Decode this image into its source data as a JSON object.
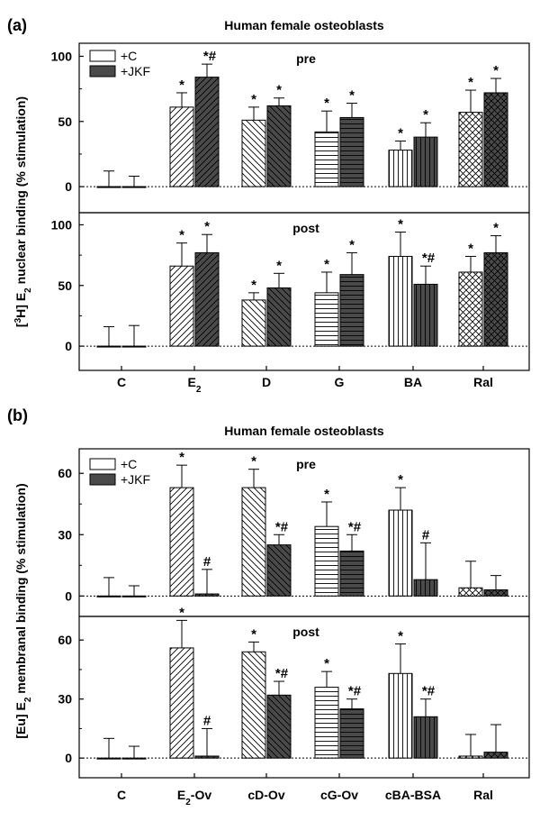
{
  "figure_title": "Human female osteoblasts, [3H] E2 nuclear binding and [Eu] E2 membranal binding",
  "colors": {
    "plus_c": "#ffffff",
    "plus_jkf": "#4a4a4a",
    "stroke": "#000000"
  },
  "chart_data": [
    {
      "type": "bar",
      "panel_label": "(a)",
      "title": "Human female osteoblasts",
      "ylabel_parts": [
        "[",
        "3",
        "H] E",
        "2",
        " nuclear binding (% stimulation)"
      ],
      "legend": [
        "+C",
        "+JKF"
      ],
      "categories": [
        "C",
        "E2",
        "D",
        "G",
        "BA",
        "Ral"
      ],
      "category_labels": [
        {
          "base": "C",
          "sub": ""
        },
        {
          "base": "E",
          "sub": "2"
        },
        {
          "base": "D",
          "sub": ""
        },
        {
          "base": "G",
          "sub": ""
        },
        {
          "base": "BA",
          "sub": ""
        },
        {
          "base": "Ral",
          "sub": ""
        }
      ],
      "hatches": [
        "none",
        "diag-up",
        "diag-down",
        "horizontal",
        "vertical",
        "crosshatch"
      ],
      "subpanels": [
        {
          "label": "pre",
          "ylim": [
            -20,
            110
          ],
          "yticks": [
            0,
            50,
            100
          ],
          "series": [
            {
              "name": "+C",
              "values": [
                0,
                61,
                51,
                42,
                28,
                57
              ],
              "errors": [
                12,
                11,
                10,
                16,
                7,
                17
              ],
              "marks": [
                "",
                "*",
                "*",
                "*",
                "*",
                "*"
              ]
            },
            {
              "name": "+JKF",
              "values": [
                0,
                84,
                62,
                53,
                38,
                72
              ],
              "errors": [
                8,
                10,
                6,
                11,
                11,
                11
              ],
              "marks": [
                "",
                "*#",
                "*",
                "*",
                "*",
                "*"
              ]
            }
          ]
        },
        {
          "label": "post",
          "ylim": [
            -20,
            110
          ],
          "yticks": [
            0,
            50,
            100
          ],
          "series": [
            {
              "name": "+C",
              "values": [
                0,
                66,
                38,
                44,
                74,
                61
              ],
              "errors": [
                16,
                19,
                6,
                17,
                20,
                13
              ],
              "marks": [
                "",
                "*",
                "*",
                "*",
                "*",
                "*"
              ]
            },
            {
              "name": "+JKF",
              "values": [
                0,
                77,
                48,
                59,
                51,
                77
              ],
              "errors": [
                17,
                15,
                12,
                18,
                15,
                14
              ],
              "marks": [
                "",
                "*",
                "*",
                "*",
                "*#",
                "*"
              ]
            }
          ]
        }
      ]
    },
    {
      "type": "bar",
      "panel_label": "(b)",
      "title": "Human female osteoblasts",
      "ylabel_parts": [
        "[Eu] E",
        "2",
        " membranal binding (% stimulation)"
      ],
      "legend": [
        "+C",
        "+JKF"
      ],
      "categories": [
        "C",
        "E2-Ov",
        "cD-Ov",
        "cG-Ov",
        "cBA-BSA",
        "Ral"
      ],
      "category_labels": [
        {
          "base": "C",
          "sub": ""
        },
        {
          "base": "E",
          "sub": "2",
          "suffix": "-Ov"
        },
        {
          "base": "cD-Ov",
          "sub": ""
        },
        {
          "base": "cG-Ov",
          "sub": ""
        },
        {
          "base": "cBA-BSA",
          "sub": ""
        },
        {
          "base": "Ral",
          "sub": ""
        }
      ],
      "hatches": [
        "none",
        "diag-up",
        "diag-down",
        "horizontal",
        "vertical",
        "crosshatch"
      ],
      "subpanels": [
        {
          "label": "pre",
          "ylim": [
            -10,
            72
          ],
          "yticks": [
            0,
            30,
            60
          ],
          "series": [
            {
              "name": "+C",
              "values": [
                0,
                53,
                53,
                34,
                42,
                4
              ],
              "errors": [
                9,
                11,
                9,
                12,
                11,
                13
              ],
              "marks": [
                "",
                "*",
                "*",
                "*",
                "*",
                ""
              ]
            },
            {
              "name": "+JKF",
              "values": [
                0,
                1,
                25,
                22,
                8,
                3
              ],
              "errors": [
                5,
                12,
                5,
                8,
                18,
                7
              ],
              "marks": [
                "",
                "#",
                "*#",
                "*#",
                "#",
                ""
              ]
            }
          ]
        },
        {
          "label": "post",
          "ylim": [
            -10,
            72
          ],
          "yticks": [
            0,
            30,
            60
          ],
          "series": [
            {
              "name": "+C",
              "values": [
                0,
                56,
                54,
                36,
                43,
                1
              ],
              "errors": [
                10,
                14,
                5,
                8,
                15,
                11
              ],
              "marks": [
                "",
                "*",
                "*",
                "*",
                "*",
                ""
              ]
            },
            {
              "name": "+JKF",
              "values": [
                0,
                1,
                32,
                25,
                21,
                3
              ],
              "errors": [
                6,
                14,
                7,
                5,
                9,
                14
              ],
              "marks": [
                "",
                "#",
                "*#",
                "*#",
                "*#",
                ""
              ]
            }
          ]
        }
      ]
    }
  ]
}
